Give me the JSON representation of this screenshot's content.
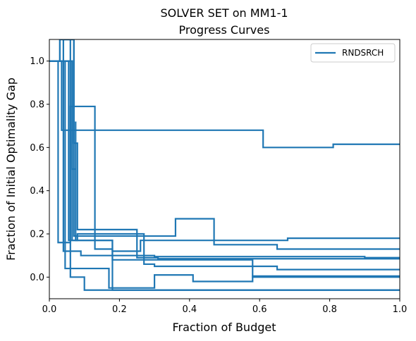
{
  "chart_data": {
    "type": "line",
    "title": "SOLVER SET on MM1-1",
    "subtitle": "Progress Curves",
    "xlabel": "Fraction of Budget",
    "ylabel": "Fraction of Initial Optimality Gap",
    "xlim": [
      0,
      1
    ],
    "ylim": [
      -0.1,
      1.1
    ],
    "x_ticks": [
      0.0,
      0.2,
      0.4,
      0.6,
      0.8,
      1.0
    ],
    "x_tick_labels": [
      "0.0",
      "0.2",
      "0.4",
      "0.6",
      "0.8",
      "1.0"
    ],
    "y_ticks": [
      0.0,
      0.2,
      0.4,
      0.6,
      0.8,
      1.0
    ],
    "y_tick_labels": [
      "0.0",
      "0.2",
      "0.4",
      "0.6",
      "0.8",
      "1.0"
    ],
    "grid": false,
    "legend": {
      "placement": "top-right",
      "entries": [
        "RNDSRCH"
      ]
    },
    "color": "#1f77b4",
    "series": [
      {
        "name": "RNDSRCH",
        "x": [
          0,
          0.035,
          0.035,
          0.61,
          0.61,
          0.81,
          0.81,
          1.0
        ],
        "y": [
          1.0,
          1.0,
          0.68,
          0.68,
          0.6,
          0.6,
          0.615,
          0.615
        ]
      },
      {
        "x": [
          0,
          0.025,
          0.025,
          0.06,
          0.06,
          0.13,
          0.13,
          0.18,
          0.18,
          1.0
        ],
        "y": [
          1.0,
          1.0,
          0.16,
          0.16,
          0.79,
          0.79,
          0.13,
          0.13,
          -0.06,
          -0.06
        ]
      },
      {
        "x": [
          0,
          0.04,
          0.04,
          0.07,
          0.07,
          0.08,
          0.08,
          0.36,
          0.36,
          0.47,
          0.47,
          0.65,
          0.65,
          1.0
        ],
        "y": [
          1.0,
          1.0,
          1.1,
          1.1,
          0.19,
          0.19,
          0.19,
          0.19,
          0.27,
          0.27,
          0.15,
          0.15,
          0.13,
          0.13
        ]
      },
      {
        "x": [
          0,
          0.03,
          0.03,
          0.07,
          0.07,
          0.08,
          0.08,
          0.25,
          0.25,
          0.31,
          0.31,
          1.0
        ],
        "y": [
          1.0,
          1.0,
          1.1,
          1.1,
          0.62,
          0.62,
          0.22,
          0.22,
          0.09,
          0.09,
          0.085,
          0.085
        ]
      },
      {
        "x": [
          0,
          0.055,
          0.055,
          0.08,
          0.08,
          0.27,
          0.27,
          0.3,
          0.3,
          0.65,
          0.65,
          1.0
        ],
        "y": [
          1.0,
          1.0,
          0.17,
          0.17,
          0.2,
          0.2,
          0.06,
          0.06,
          0.05,
          0.05,
          0.035,
          0.035
        ]
      },
      {
        "x": [
          0,
          0.065,
          0.065,
          0.18,
          0.18,
          0.26,
          0.26,
          0.68,
          0.68,
          1.0
        ],
        "y": [
          1.0,
          1.0,
          0.17,
          0.17,
          0.12,
          0.12,
          0.17,
          0.17,
          0.18,
          0.18
        ]
      },
      {
        "x": [
          0,
          0.065,
          0.065,
          0.075,
          0.075,
          0.075,
          0.075,
          0.18,
          0.18,
          0.58,
          0.58,
          1.0
        ],
        "y": [
          1.0,
          1.0,
          0.5,
          0.5,
          0.72,
          0.72,
          0.17,
          0.17,
          0.08,
          0.08,
          0.0,
          0.0
        ]
      },
      {
        "x": [
          0,
          0.02,
          0.02,
          0.04,
          0.04,
          0.09,
          0.09,
          0.3,
          0.3,
          0.9,
          0.9,
          1.0
        ],
        "y": [
          1.0,
          1.0,
          1.0,
          1.0,
          0.12,
          0.12,
          0.1,
          0.1,
          0.095,
          0.095,
          0.09,
          0.09
        ]
      },
      {
        "x": [
          0,
          0.045,
          0.045,
          0.17,
          0.17,
          0.3,
          0.3,
          0.41,
          0.41,
          0.58,
          0.58,
          1.0
        ],
        "y": [
          1.0,
          1.0,
          0.04,
          0.04,
          -0.05,
          -0.05,
          0.01,
          0.01,
          -0.02,
          -0.02,
          0.005,
          0.005
        ]
      },
      {
        "x": [
          0,
          0.03,
          0.03,
          0.06,
          0.06,
          0.1,
          0.1,
          1.0
        ],
        "y": [
          1.0,
          1.0,
          1.1,
          1.1,
          0.0,
          0.0,
          -0.06,
          -0.06
        ]
      }
    ]
  }
}
